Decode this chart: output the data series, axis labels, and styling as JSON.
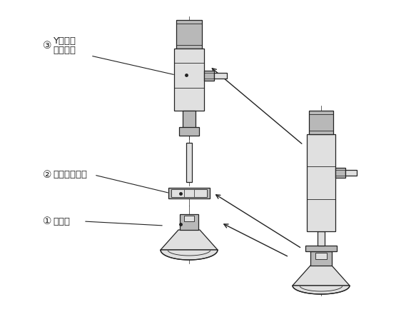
{
  "bg_color": "#ffffff",
  "line_color": "#222222",
  "fill_light": "#e0e0e0",
  "fill_mid": "#b8b8b8",
  "fill_dark": "#989898",
  "label1": "パッド",
  "label2": "ロックリング",
  "label3_line1": "Yタイプ",
  "label3_line2": "アダプタ",
  "circle1": "①",
  "circle2": "②",
  "circle3": "③",
  "figsize": [
    5.83,
    4.37
  ],
  "dpi": 100
}
